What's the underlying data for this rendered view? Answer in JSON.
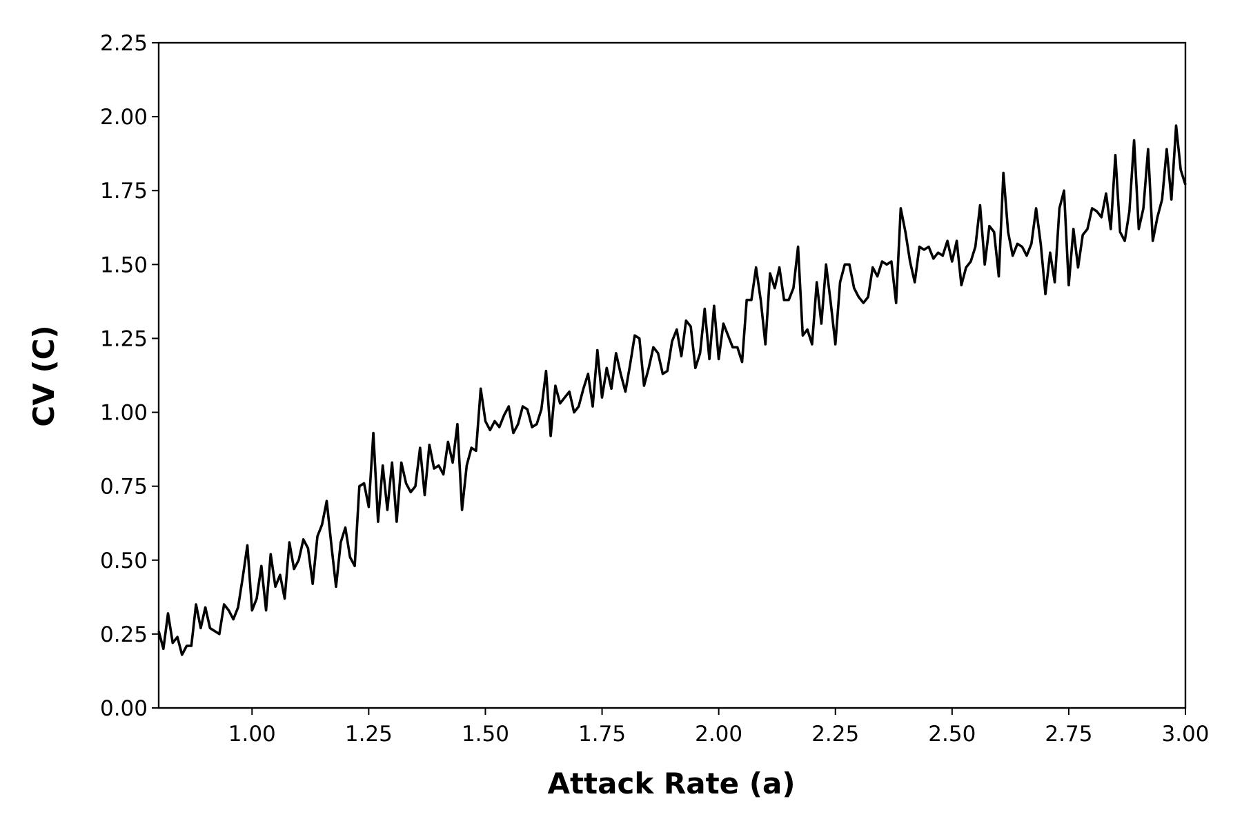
{
  "chart_data": {
    "type": "line",
    "title": "",
    "xlabel": "Attack Rate (a)",
    "ylabel": "CV (C)",
    "xlim": [
      0.8,
      3.0
    ],
    "ylim": [
      0.0,
      2.25
    ],
    "grid": false,
    "legend": "none",
    "x_ticks": [
      "1.00",
      "1.25",
      "1.50",
      "1.75",
      "2.00",
      "2.25",
      "2.50",
      "2.75",
      "3.00"
    ],
    "y_ticks": [
      "0.00",
      "0.25",
      "0.50",
      "0.75",
      "1.00",
      "1.25",
      "1.50",
      "1.75",
      "2.00",
      "2.25"
    ],
    "series": [
      {
        "color": "#000000",
        "points": [
          [
            0.8,
            0.26
          ],
          [
            0.81,
            0.2
          ],
          [
            0.82,
            0.32
          ],
          [
            0.83,
            0.22
          ],
          [
            0.84,
            0.24
          ],
          [
            0.85,
            0.18
          ],
          [
            0.86,
            0.21
          ],
          [
            0.87,
            0.21
          ],
          [
            0.88,
            0.35
          ],
          [
            0.89,
            0.27
          ],
          [
            0.9,
            0.34
          ],
          [
            0.91,
            0.27
          ],
          [
            0.93,
            0.25
          ],
          [
            0.94,
            0.35
          ],
          [
            0.95,
            0.33
          ],
          [
            0.96,
            0.3
          ],
          [
            0.97,
            0.34
          ],
          [
            0.98,
            0.44
          ],
          [
            0.99,
            0.55
          ],
          [
            1.0,
            0.33
          ],
          [
            1.01,
            0.37
          ],
          [
            1.02,
            0.48
          ],
          [
            1.03,
            0.33
          ],
          [
            1.04,
            0.52
          ],
          [
            1.05,
            0.41
          ],
          [
            1.06,
            0.45
          ],
          [
            1.07,
            0.37
          ],
          [
            1.08,
            0.56
          ],
          [
            1.09,
            0.47
          ],
          [
            1.1,
            0.5
          ],
          [
            1.11,
            0.57
          ],
          [
            1.12,
            0.54
          ],
          [
            1.13,
            0.42
          ],
          [
            1.14,
            0.58
          ],
          [
            1.15,
            0.62
          ],
          [
            1.16,
            0.7
          ],
          [
            1.17,
            0.55
          ],
          [
            1.18,
            0.41
          ],
          [
            1.19,
            0.56
          ],
          [
            1.2,
            0.61
          ],
          [
            1.21,
            0.51
          ],
          [
            1.22,
            0.48
          ],
          [
            1.23,
            0.75
          ],
          [
            1.24,
            0.76
          ],
          [
            1.25,
            0.68
          ],
          [
            1.26,
            0.93
          ],
          [
            1.27,
            0.63
          ],
          [
            1.28,
            0.82
          ],
          [
            1.29,
            0.67
          ],
          [
            1.3,
            0.83
          ],
          [
            1.31,
            0.63
          ],
          [
            1.32,
            0.83
          ],
          [
            1.33,
            0.76
          ],
          [
            1.34,
            0.73
          ],
          [
            1.35,
            0.75
          ],
          [
            1.36,
            0.88
          ],
          [
            1.37,
            0.72
          ],
          [
            1.38,
            0.89
          ],
          [
            1.39,
            0.81
          ],
          [
            1.4,
            0.82
          ],
          [
            1.41,
            0.79
          ],
          [
            1.42,
            0.9
          ],
          [
            1.43,
            0.83
          ],
          [
            1.44,
            0.96
          ],
          [
            1.45,
            0.67
          ],
          [
            1.46,
            0.82
          ],
          [
            1.47,
            0.88
          ],
          [
            1.48,
            0.87
          ],
          [
            1.49,
            1.08
          ],
          [
            1.5,
            0.97
          ],
          [
            1.51,
            0.94
          ],
          [
            1.52,
            0.97
          ],
          [
            1.53,
            0.95
          ],
          [
            1.54,
            0.99
          ],
          [
            1.55,
            1.02
          ],
          [
            1.56,
            0.93
          ],
          [
            1.57,
            0.96
          ],
          [
            1.58,
            1.02
          ],
          [
            1.59,
            1.01
          ],
          [
            1.6,
            0.95
          ],
          [
            1.61,
            0.96
          ],
          [
            1.62,
            1.01
          ],
          [
            1.63,
            1.14
          ],
          [
            1.64,
            0.92
          ],
          [
            1.65,
            1.09
          ],
          [
            1.66,
            1.03
          ],
          [
            1.67,
            1.05
          ],
          [
            1.68,
            1.07
          ],
          [
            1.69,
            1.0
          ],
          [
            1.7,
            1.02
          ],
          [
            1.71,
            1.08
          ],
          [
            1.72,
            1.13
          ],
          [
            1.73,
            1.02
          ],
          [
            1.74,
            1.21
          ],
          [
            1.75,
            1.05
          ],
          [
            1.76,
            1.15
          ],
          [
            1.77,
            1.08
          ],
          [
            1.78,
            1.2
          ],
          [
            1.79,
            1.13
          ],
          [
            1.8,
            1.07
          ],
          [
            1.81,
            1.16
          ],
          [
            1.82,
            1.26
          ],
          [
            1.83,
            1.25
          ],
          [
            1.84,
            1.09
          ],
          [
            1.85,
            1.15
          ],
          [
            1.86,
            1.22
          ],
          [
            1.87,
            1.2
          ],
          [
            1.88,
            1.13
          ],
          [
            1.89,
            1.14
          ],
          [
            1.9,
            1.24
          ],
          [
            1.91,
            1.28
          ],
          [
            1.92,
            1.19
          ],
          [
            1.93,
            1.31
          ],
          [
            1.94,
            1.29
          ],
          [
            1.95,
            1.15
          ],
          [
            1.96,
            1.2
          ],
          [
            1.97,
            1.35
          ],
          [
            1.98,
            1.18
          ],
          [
            1.99,
            1.36
          ],
          [
            2.0,
            1.18
          ],
          [
            2.01,
            1.3
          ],
          [
            2.02,
            1.26
          ],
          [
            2.03,
            1.22
          ],
          [
            2.04,
            1.22
          ],
          [
            2.05,
            1.17
          ],
          [
            2.06,
            1.38
          ],
          [
            2.07,
            1.38
          ],
          [
            2.08,
            1.49
          ],
          [
            2.09,
            1.38
          ],
          [
            2.1,
            1.23
          ],
          [
            2.11,
            1.47
          ],
          [
            2.12,
            1.42
          ],
          [
            2.13,
            1.49
          ],
          [
            2.14,
            1.38
          ],
          [
            2.15,
            1.38
          ],
          [
            2.16,
            1.42
          ],
          [
            2.17,
            1.56
          ],
          [
            2.18,
            1.26
          ],
          [
            2.19,
            1.28
          ],
          [
            2.2,
            1.23
          ],
          [
            2.21,
            1.44
          ],
          [
            2.22,
            1.3
          ],
          [
            2.23,
            1.5
          ],
          [
            2.24,
            1.37
          ],
          [
            2.25,
            1.23
          ],
          [
            2.26,
            1.44
          ],
          [
            2.27,
            1.5
          ],
          [
            2.28,
            1.5
          ],
          [
            2.29,
            1.42
          ],
          [
            2.3,
            1.39
          ],
          [
            2.31,
            1.37
          ],
          [
            2.32,
            1.39
          ],
          [
            2.33,
            1.49
          ],
          [
            2.34,
            1.46
          ],
          [
            2.35,
            1.51
          ],
          [
            2.36,
            1.5
          ],
          [
            2.37,
            1.51
          ],
          [
            2.38,
            1.37
          ],
          [
            2.39,
            1.69
          ],
          [
            2.4,
            1.61
          ],
          [
            2.41,
            1.51
          ],
          [
            2.42,
            1.44
          ],
          [
            2.43,
            1.56
          ],
          [
            2.44,
            1.55
          ],
          [
            2.45,
            1.56
          ],
          [
            2.46,
            1.52
          ],
          [
            2.47,
            1.54
          ],
          [
            2.48,
            1.53
          ],
          [
            2.49,
            1.58
          ],
          [
            2.5,
            1.51
          ],
          [
            2.51,
            1.58
          ],
          [
            2.52,
            1.43
          ],
          [
            2.53,
            1.49
          ],
          [
            2.54,
            1.51
          ],
          [
            2.55,
            1.56
          ],
          [
            2.56,
            1.7
          ],
          [
            2.57,
            1.5
          ],
          [
            2.58,
            1.63
          ],
          [
            2.59,
            1.61
          ],
          [
            2.6,
            1.46
          ],
          [
            2.61,
            1.81
          ],
          [
            2.62,
            1.61
          ],
          [
            2.63,
            1.53
          ],
          [
            2.64,
            1.57
          ],
          [
            2.65,
            1.56
          ],
          [
            2.66,
            1.53
          ],
          [
            2.67,
            1.57
          ],
          [
            2.68,
            1.69
          ],
          [
            2.69,
            1.57
          ],
          [
            2.7,
            1.4
          ],
          [
            2.71,
            1.54
          ],
          [
            2.72,
            1.44
          ],
          [
            2.73,
            1.69
          ],
          [
            2.74,
            1.75
          ],
          [
            2.75,
            1.43
          ],
          [
            2.76,
            1.62
          ],
          [
            2.77,
            1.49
          ],
          [
            2.78,
            1.6
          ],
          [
            2.79,
            1.62
          ],
          [
            2.8,
            1.69
          ],
          [
            2.81,
            1.68
          ],
          [
            2.82,
            1.66
          ],
          [
            2.83,
            1.74
          ],
          [
            2.84,
            1.62
          ],
          [
            2.85,
            1.87
          ],
          [
            2.86,
            1.61
          ],
          [
            2.87,
            1.58
          ],
          [
            2.88,
            1.68
          ],
          [
            2.89,
            1.92
          ],
          [
            2.9,
            1.62
          ],
          [
            2.91,
            1.69
          ],
          [
            2.92,
            1.89
          ],
          [
            2.93,
            1.58
          ],
          [
            2.94,
            1.66
          ],
          [
            2.95,
            1.72
          ],
          [
            2.96,
            1.89
          ],
          [
            2.97,
            1.72
          ],
          [
            2.98,
            1.97
          ],
          [
            2.99,
            1.82
          ],
          [
            3.0,
            1.77
          ]
        ]
      }
    ]
  }
}
